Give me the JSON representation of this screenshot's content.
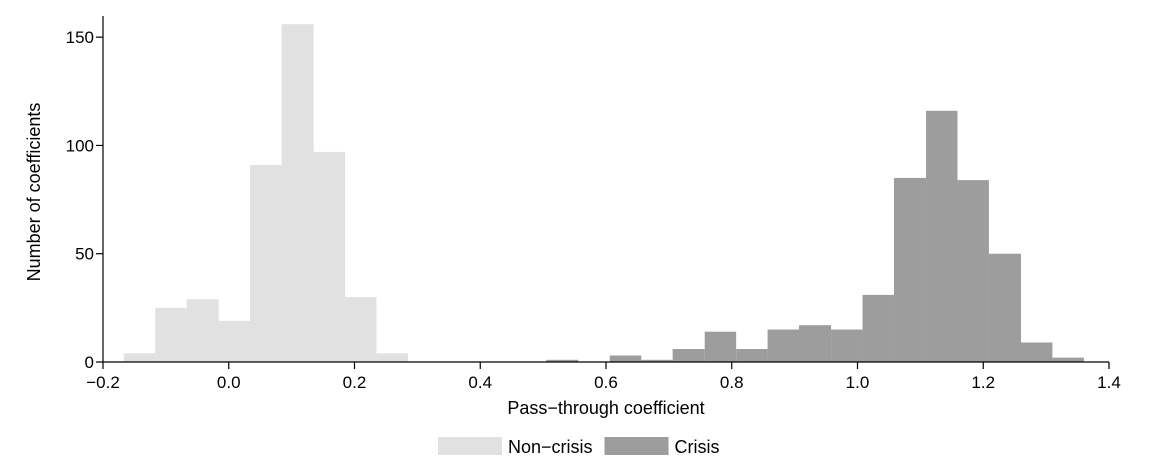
{
  "chart_data": {
    "type": "bar",
    "xlabel": "Pass−through coefficient",
    "ylabel": "Number of coefficients",
    "xlim": [
      -0.2,
      1.4
    ],
    "ylim": [
      0,
      157
    ],
    "xticks": [
      -0.2,
      0.0,
      0.2,
      0.4,
      0.6,
      0.8,
      1.0,
      1.2,
      1.4
    ],
    "xtick_labels": [
      "−0.2",
      "0.0",
      "0.2",
      "0.4",
      "0.6",
      "0.8",
      "1.0",
      "1.2",
      "1.4"
    ],
    "yticks": [
      0,
      50,
      100,
      150
    ],
    "ytick_labels": [
      "0",
      "50",
      "100",
      "150"
    ],
    "legend_position": "bottom",
    "series": [
      {
        "name": "Non−crisis",
        "color": "#e1e1e1",
        "bins": [
          {
            "x0": -0.167,
            "x1": -0.117,
            "count": 4
          },
          {
            "x0": -0.117,
            "x1": -0.067,
            "count": 25
          },
          {
            "x0": -0.067,
            "x1": -0.016,
            "count": 29
          },
          {
            "x0": -0.016,
            "x1": 0.034,
            "count": 19
          },
          {
            "x0": 0.034,
            "x1": 0.084,
            "count": 91
          },
          {
            "x0": 0.084,
            "x1": 0.135,
            "count": 156
          },
          {
            "x0": 0.135,
            "x1": 0.185,
            "count": 97
          },
          {
            "x0": 0.185,
            "x1": 0.235,
            "count": 30
          },
          {
            "x0": 0.235,
            "x1": 0.285,
            "count": 4
          }
        ]
      },
      {
        "name": "Crisis",
        "color": "#9d9d9d",
        "bins": [
          {
            "x0": 0.505,
            "x1": 0.556,
            "count": 1
          },
          {
            "x0": 0.606,
            "x1": 0.656,
            "count": 3
          },
          {
            "x0": 0.656,
            "x1": 0.706,
            "count": 1
          },
          {
            "x0": 0.706,
            "x1": 0.757,
            "count": 6
          },
          {
            "x0": 0.757,
            "x1": 0.807,
            "count": 14
          },
          {
            "x0": 0.807,
            "x1": 0.857,
            "count": 6
          },
          {
            "x0": 0.857,
            "x1": 0.907,
            "count": 15
          },
          {
            "x0": 0.907,
            "x1": 0.958,
            "count": 17
          },
          {
            "x0": 0.958,
            "x1": 1.008,
            "count": 15
          },
          {
            "x0": 1.008,
            "x1": 1.058,
            "count": 31
          },
          {
            "x0": 1.058,
            "x1": 1.109,
            "count": 85
          },
          {
            "x0": 1.109,
            "x1": 1.159,
            "count": 116
          },
          {
            "x0": 1.159,
            "x1": 1.209,
            "count": 84
          },
          {
            "x0": 1.209,
            "x1": 1.26,
            "count": 50
          },
          {
            "x0": 1.26,
            "x1": 1.31,
            "count": 9
          },
          {
            "x0": 1.31,
            "x1": 1.36,
            "count": 2
          }
        ]
      }
    ]
  }
}
